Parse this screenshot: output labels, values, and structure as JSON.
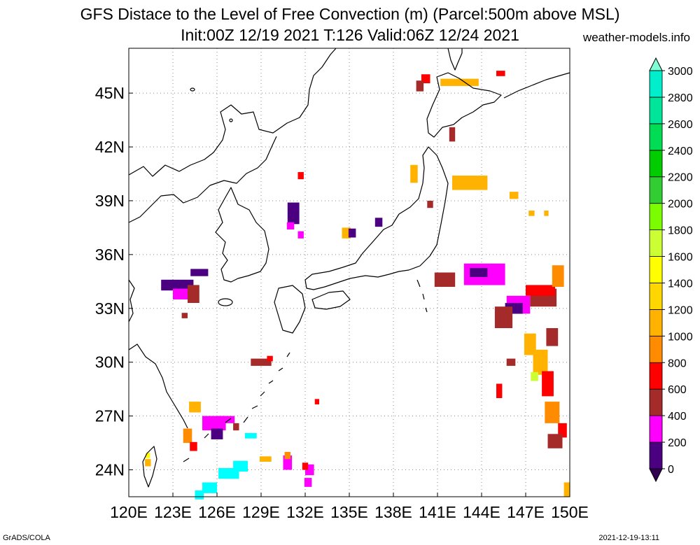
{
  "title": {
    "line1": "GFS Distace to the Level of Free Convection (m) (Parcel:500m above MSL)",
    "line2": "Init:00Z 12/19 2021 T:126 Valid:06Z 12/24 2021",
    "site": "weather-models.info"
  },
  "footer": {
    "left": "GrADS/COLA",
    "right": "2021-12-19-13:11"
  },
  "map": {
    "lon_labels": [
      "120E",
      "123E",
      "126E",
      "129E",
      "132E",
      "135E",
      "138E",
      "141E",
      "144E",
      "147E",
      "150E"
    ],
    "lat_labels": [
      "24N",
      "27N",
      "30N",
      "33N",
      "36N",
      "39N",
      "42N",
      "45N"
    ],
    "lon_range": [
      120,
      150
    ],
    "lat_range": [
      22.5,
      47.5
    ],
    "gridlines": "dotted"
  },
  "colorbar": {
    "labels": [
      "0",
      "200",
      "400",
      "600",
      "800",
      "1000",
      "1200",
      "1400",
      "1600",
      "1800",
      "2000",
      "2200",
      "2400",
      "2600",
      "2800",
      "3000"
    ],
    "colors": [
      "#4b0082",
      "#ff00ff",
      "#a52a2a",
      "#ff0000",
      "#ff8c00",
      "#ffb300",
      "#ffd700",
      "#ffff00",
      "#ccff33",
      "#7cfc00",
      "#32cd32",
      "#00cc00",
      "#00dd55",
      "#00e599",
      "#00eecc",
      "#00ffff"
    ],
    "above_color": "#7fffd4",
    "below_color": "#2e004f"
  }
}
